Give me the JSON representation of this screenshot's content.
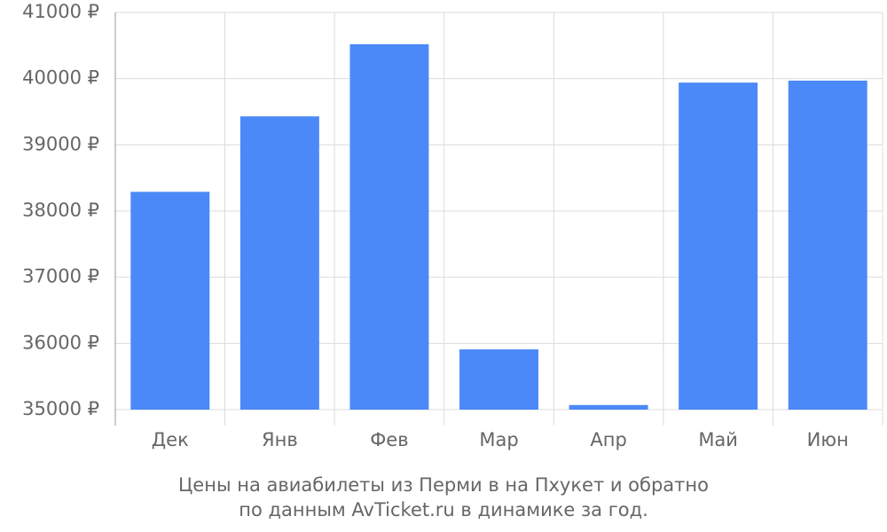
{
  "chart_data": {
    "type": "bar",
    "title": "Цены на авиабилеты из Перми в на Пхукет и обратно",
    "subtitle": "по данным AvTicket.ru в динамике за год.",
    "categories": [
      "Дек",
      "Янв",
      "Фев",
      "Мар",
      "Апр",
      "Май",
      "Июн"
    ],
    "values": [
      38290,
      39430,
      40520,
      35910,
      35070,
      39940,
      39970
    ],
    "color": "#4b89f8",
    "ylim": [
      35000,
      41000
    ],
    "yticks": [
      {
        "value": 35000,
        "label": "35000 ₽"
      },
      {
        "value": 36000,
        "label": "36000 ₽"
      },
      {
        "value": 37000,
        "label": "37000 ₽"
      },
      {
        "value": 38000,
        "label": "38000 ₽"
      },
      {
        "value": 39000,
        "label": "39000 ₽"
      },
      {
        "value": 40000,
        "label": "40000 ₽"
      },
      {
        "value": 41000,
        "label": "41000 ₽"
      }
    ],
    "grid": true
  }
}
